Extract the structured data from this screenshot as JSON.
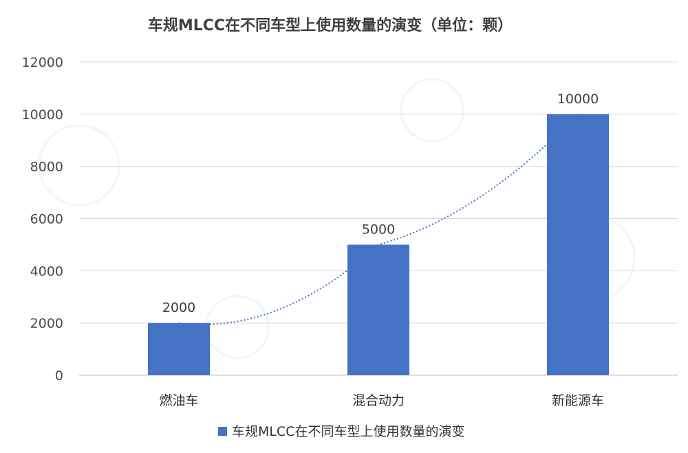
{
  "chart_data": {
    "type": "bar",
    "title": "车规MLCC在不同车型上使用数量的演变（单位：颗）",
    "categories": [
      "燃油车",
      "混合动力",
      "新能源车"
    ],
    "series": [
      {
        "name": "车规MLCC在不同车型上使用数量的演变",
        "values": [
          2000,
          5000,
          10000
        ]
      }
    ],
    "data_labels": [
      "2000",
      "5000",
      "10000"
    ],
    "yticks": [
      "0",
      "2000",
      "4000",
      "6000",
      "8000",
      "10000",
      "12000"
    ],
    "ylim": [
      0,
      12000
    ],
    "grid": true,
    "trendline": "exponential, dotted",
    "legend_position": "bottom",
    "xlabel": "",
    "ylabel": ""
  },
  "colors": {
    "bar": "#4472c4",
    "trendline": "#4472c4",
    "grid": "#d9d9d9",
    "axis": "#bfbfbf",
    "watermark": "#4aa3d8"
  },
  "watermark_icon": "chip-brand-watermark-icon"
}
